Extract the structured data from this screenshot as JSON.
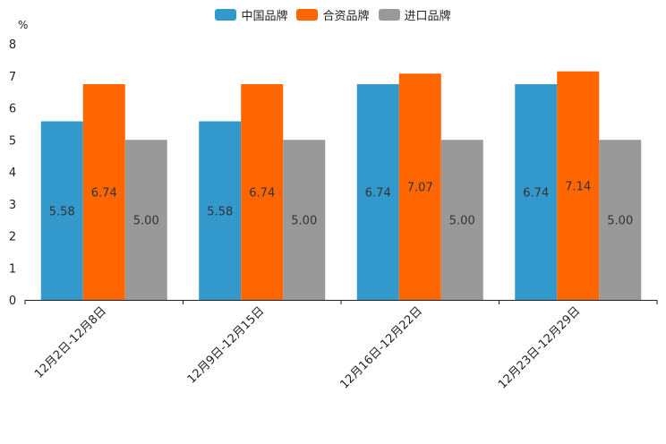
{
  "chart_data": {
    "type": "bar",
    "unit_label": "%",
    "categories": [
      "12月2日-12月8日",
      "12月9日-12月15日",
      "12月16日-12月22日",
      "12月23日-12月29日"
    ],
    "series": [
      {
        "name": "中国品牌",
        "color": "#3399cc",
        "values": [
          5.58,
          5.58,
          6.74,
          6.74
        ],
        "labels": [
          "5.58",
          "5.58",
          "6.74",
          "6.74"
        ]
      },
      {
        "name": "合资品牌",
        "color": "#ff6600",
        "values": [
          6.74,
          6.74,
          7.07,
          7.14
        ],
        "labels": [
          "6.74",
          "6.74",
          "7.07",
          "7.14"
        ]
      },
      {
        "name": "进口品牌",
        "color": "#999999",
        "values": [
          5.0,
          5.0,
          5.0,
          5.0
        ],
        "labels": [
          "5.00",
          "5.00",
          "5.00",
          "5.00"
        ]
      }
    ],
    "ylim": [
      0,
      8
    ],
    "yticks": [
      "0",
      "1",
      "2",
      "3",
      "4",
      "5",
      "6",
      "7",
      "8"
    ],
    "legend_position": "top-center",
    "grid": false
  }
}
